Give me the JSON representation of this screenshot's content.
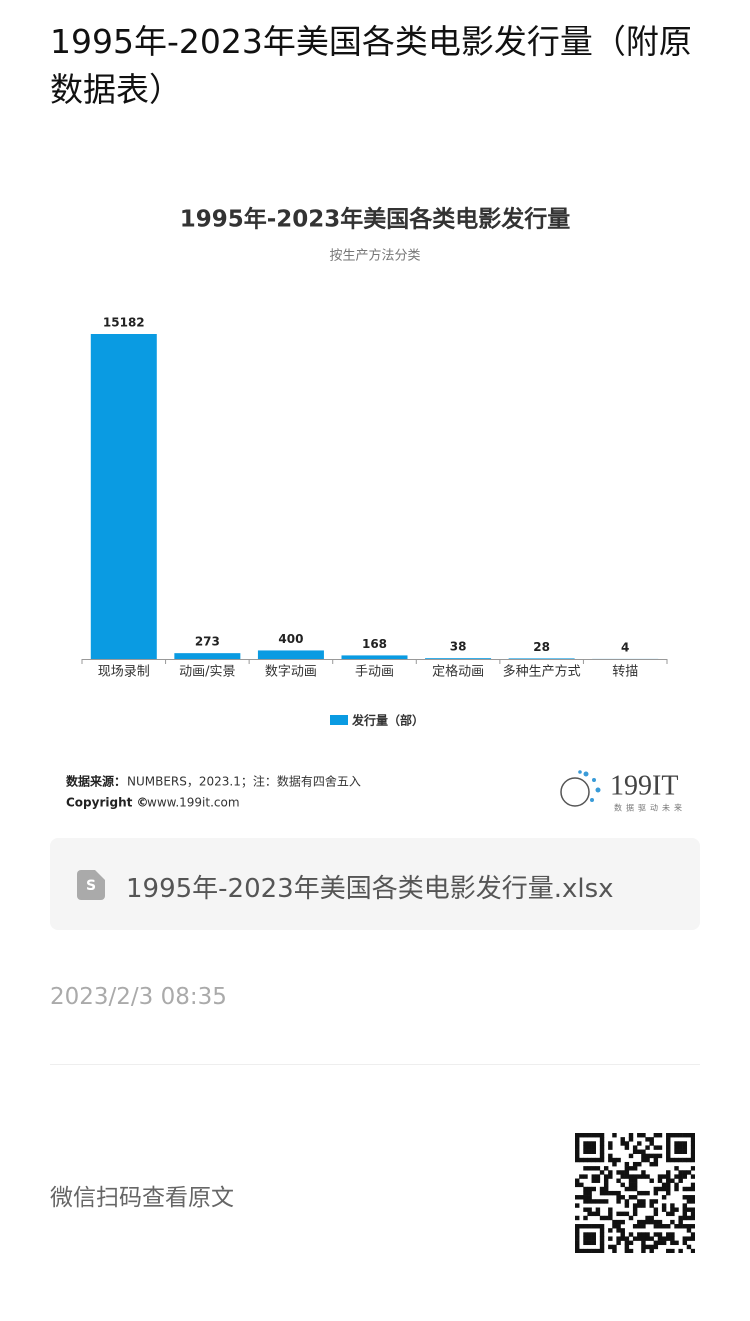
{
  "header": {
    "title": "1995年-2023年美国各类电影发行量（附原数据表）"
  },
  "chart_data": {
    "type": "bar",
    "title": "1995年-2023年美国各类电影发行量",
    "subtitle": "按生产方法分类",
    "categories": [
      "现场录制",
      "动画/实景",
      "数字动画",
      "手动画",
      "定格动画",
      "多种生产方式",
      "转描"
    ],
    "series": [
      {
        "name": "发行量（部）",
        "color": "#0a9be2",
        "values": [
          15182,
          273,
          400,
          168,
          38,
          28,
          4
        ]
      }
    ],
    "legend": "bottom",
    "source_label": "数据来源：",
    "source_text": "NUMBERS，2023.1；注：数据有四舍五入",
    "copyright_label": "Copyright ©",
    "copyright_text": "www.199it.com",
    "logo": "199IT",
    "logo_tagline": "数据驱动未来"
  },
  "attachment": {
    "file_name": "1995年-2023年美国各类电影发行量.xlsx"
  },
  "date": "2023/2/3 08:35",
  "footer": {
    "qr_hint": "微信扫码查看原文"
  }
}
